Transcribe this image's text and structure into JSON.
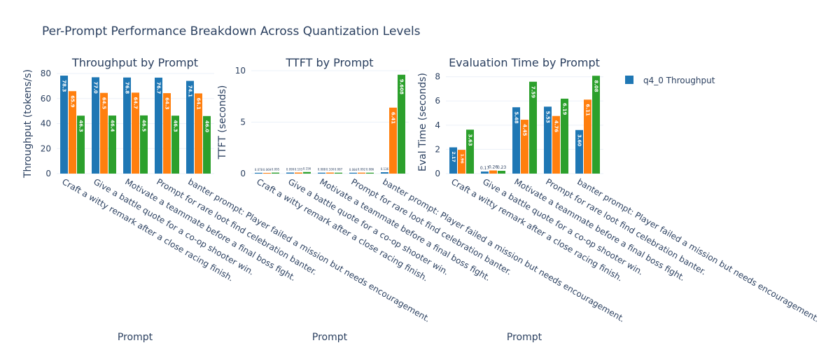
{
  "title": "Per-Prompt Performance Breakdown Across Quantization Levels",
  "legend": [
    {
      "label": "q4_0 Throughput",
      "color": "#1f77b4"
    }
  ],
  "colors": [
    "#1f77b4",
    "#ff7f0e",
    "#2ca02c"
  ],
  "chart_data": [
    {
      "type": "bar",
      "title": "Throughput by Prompt",
      "xlabel": "Prompt",
      "ylabel": "Throughput (tokens/s)",
      "ylim": [
        0,
        80
      ],
      "yticks": [
        0,
        20,
        40,
        60,
        80
      ],
      "grid": true,
      "categories": [
        "Craft a witty remark after a close racing finish.",
        "Give a battle quote for a co-op shooter win.",
        "Motivate a teammate before a final boss fight.",
        "Prompt for rare loot find celebration banter.",
        "banter prompt: Player failed a mission but needs encouragement."
      ],
      "series": [
        {
          "name": "q4_0 Throughput",
          "values": [
            78.3,
            77.0,
            76.8,
            76.7,
            74.1
          ],
          "labels": [
            "78.3",
            "77.0",
            "76.8",
            "76.7",
            "74.1"
          ]
        },
        {
          "values": [
            65.9,
            64.5,
            64.7,
            64.3,
            64.1
          ],
          "labels": [
            "65.9",
            "64.5",
            "64.7",
            "64.3",
            "64.1"
          ]
        },
        {
          "values": [
            46.3,
            46.4,
            46.5,
            46.3,
            46.0
          ],
          "labels": [
            "46.3",
            "46.4",
            "46.5",
            "46.3",
            "46.0"
          ]
        }
      ]
    },
    {
      "type": "bar",
      "title": "TTFT by Prompt",
      "xlabel": "Prompt",
      "ylabel": "TTFT (seconds)",
      "ylim": [
        0,
        10
      ],
      "yticks": [
        0,
        5,
        10
      ],
      "grid": true,
      "categories": [
        "Craft a witty remark after a close racing finish.",
        "Give a battle quote for a co-op shooter win.",
        "Motivate a teammate before a final boss fight.",
        "Prompt for rare loot find celebration banter.",
        "banter prompt: Player failed a mission but needs encouragement."
      ],
      "series": [
        {
          "values": [
            0.078,
            0.099,
            0.088,
            0.084,
            0.136
          ],
          "labels": [
            "0.078",
            "0.099",
            "0.088",
            "0.084",
            "0.136"
          ]
        },
        {
          "values": [
            0.069,
            0.103,
            0.1,
            0.092,
            6.41
          ],
          "labels": [
            "0.069",
            "0.103",
            "0.100",
            "0.092",
            "6.41"
          ]
        },
        {
          "values": [
            0.095,
            0.156,
            0.087,
            0.086,
            9.608
          ],
          "labels": [
            "0.095",
            "0.156",
            "0.087",
            "0.086",
            "9.608"
          ]
        }
      ]
    },
    {
      "type": "bar",
      "title": "Evaluation Time by Prompt",
      "xlabel": "Prompt",
      "ylabel": "Eval Time (seconds)",
      "ylim": [
        0,
        8.5
      ],
      "yticks": [
        0,
        2,
        4,
        6,
        8
      ],
      "grid": true,
      "categories": [
        "Craft a witty remark after a close racing finish.",
        "Give a battle quote for a co-op shooter win.",
        "Motivate a teammate before a final boss fight.",
        "Prompt for rare loot find celebration banter.",
        "banter prompt: Player failed a mission but needs encouragement."
      ],
      "series": [
        {
          "values": [
            2.17,
            0.17,
            5.48,
            5.53,
            3.6
          ],
          "labels": [
            "2.17",
            "0.17",
            "5.48",
            "5.53",
            "3.60"
          ]
        },
        {
          "values": [
            1.96,
            0.26,
            4.45,
            4.76,
            6.11
          ],
          "labels": [
            "1.96",
            "0.26",
            "4.45",
            "4.76",
            "6.11"
          ]
        },
        {
          "values": [
            3.63,
            0.23,
            7.59,
            6.19,
            8.08
          ],
          "labels": [
            "3.63",
            "0.23",
            "7.59",
            "6.19",
            "8.08"
          ]
        }
      ]
    }
  ]
}
